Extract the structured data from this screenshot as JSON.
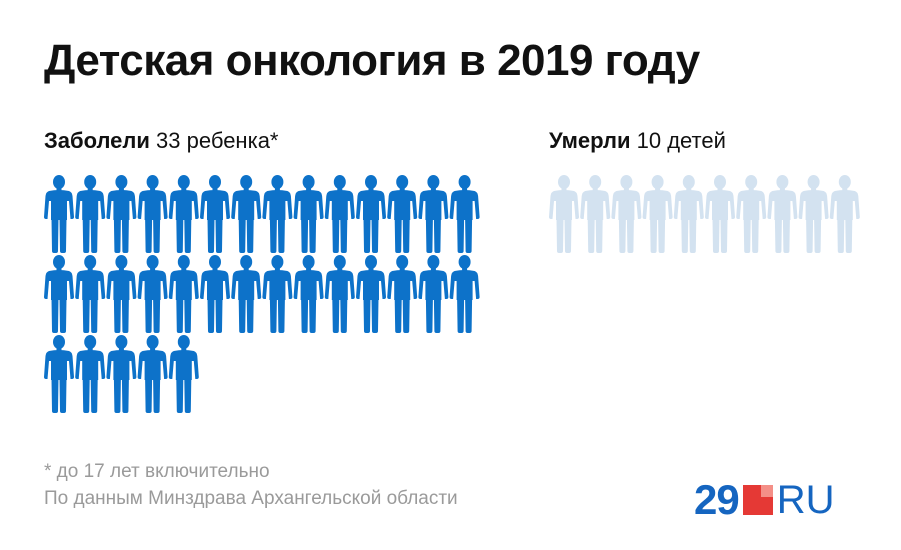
{
  "title": "Детская онкология в 2019 году",
  "groups": {
    "sick": {
      "label_bold": "Заболели",
      "label_rest": " 33 ребенка*"
    },
    "dead": {
      "label_bold": "Умерли",
      "label_rest": " 10 детей"
    }
  },
  "footnotes": [
    "* до 17 лет включительно",
    "По данным Минздрава Архангельской области"
  ],
  "logo": {
    "number": "29",
    "suffix": "RU"
  },
  "colors": {
    "sick": "#0d72c9",
    "dead": "#d3e2f0",
    "logo_blue": "#1565c0",
    "logo_red": "#e53935"
  },
  "chart_data": {
    "type": "pictogram",
    "title": "Детская онкология в 2019 году",
    "unit_icon": "child-figure-icon",
    "series": [
      {
        "name": "Заболели",
        "value": 33,
        "color": "#0d72c9",
        "per_row": 14
      },
      {
        "name": "Умерли",
        "value": 10,
        "color": "#d3e2f0",
        "per_row": 10
      }
    ]
  }
}
